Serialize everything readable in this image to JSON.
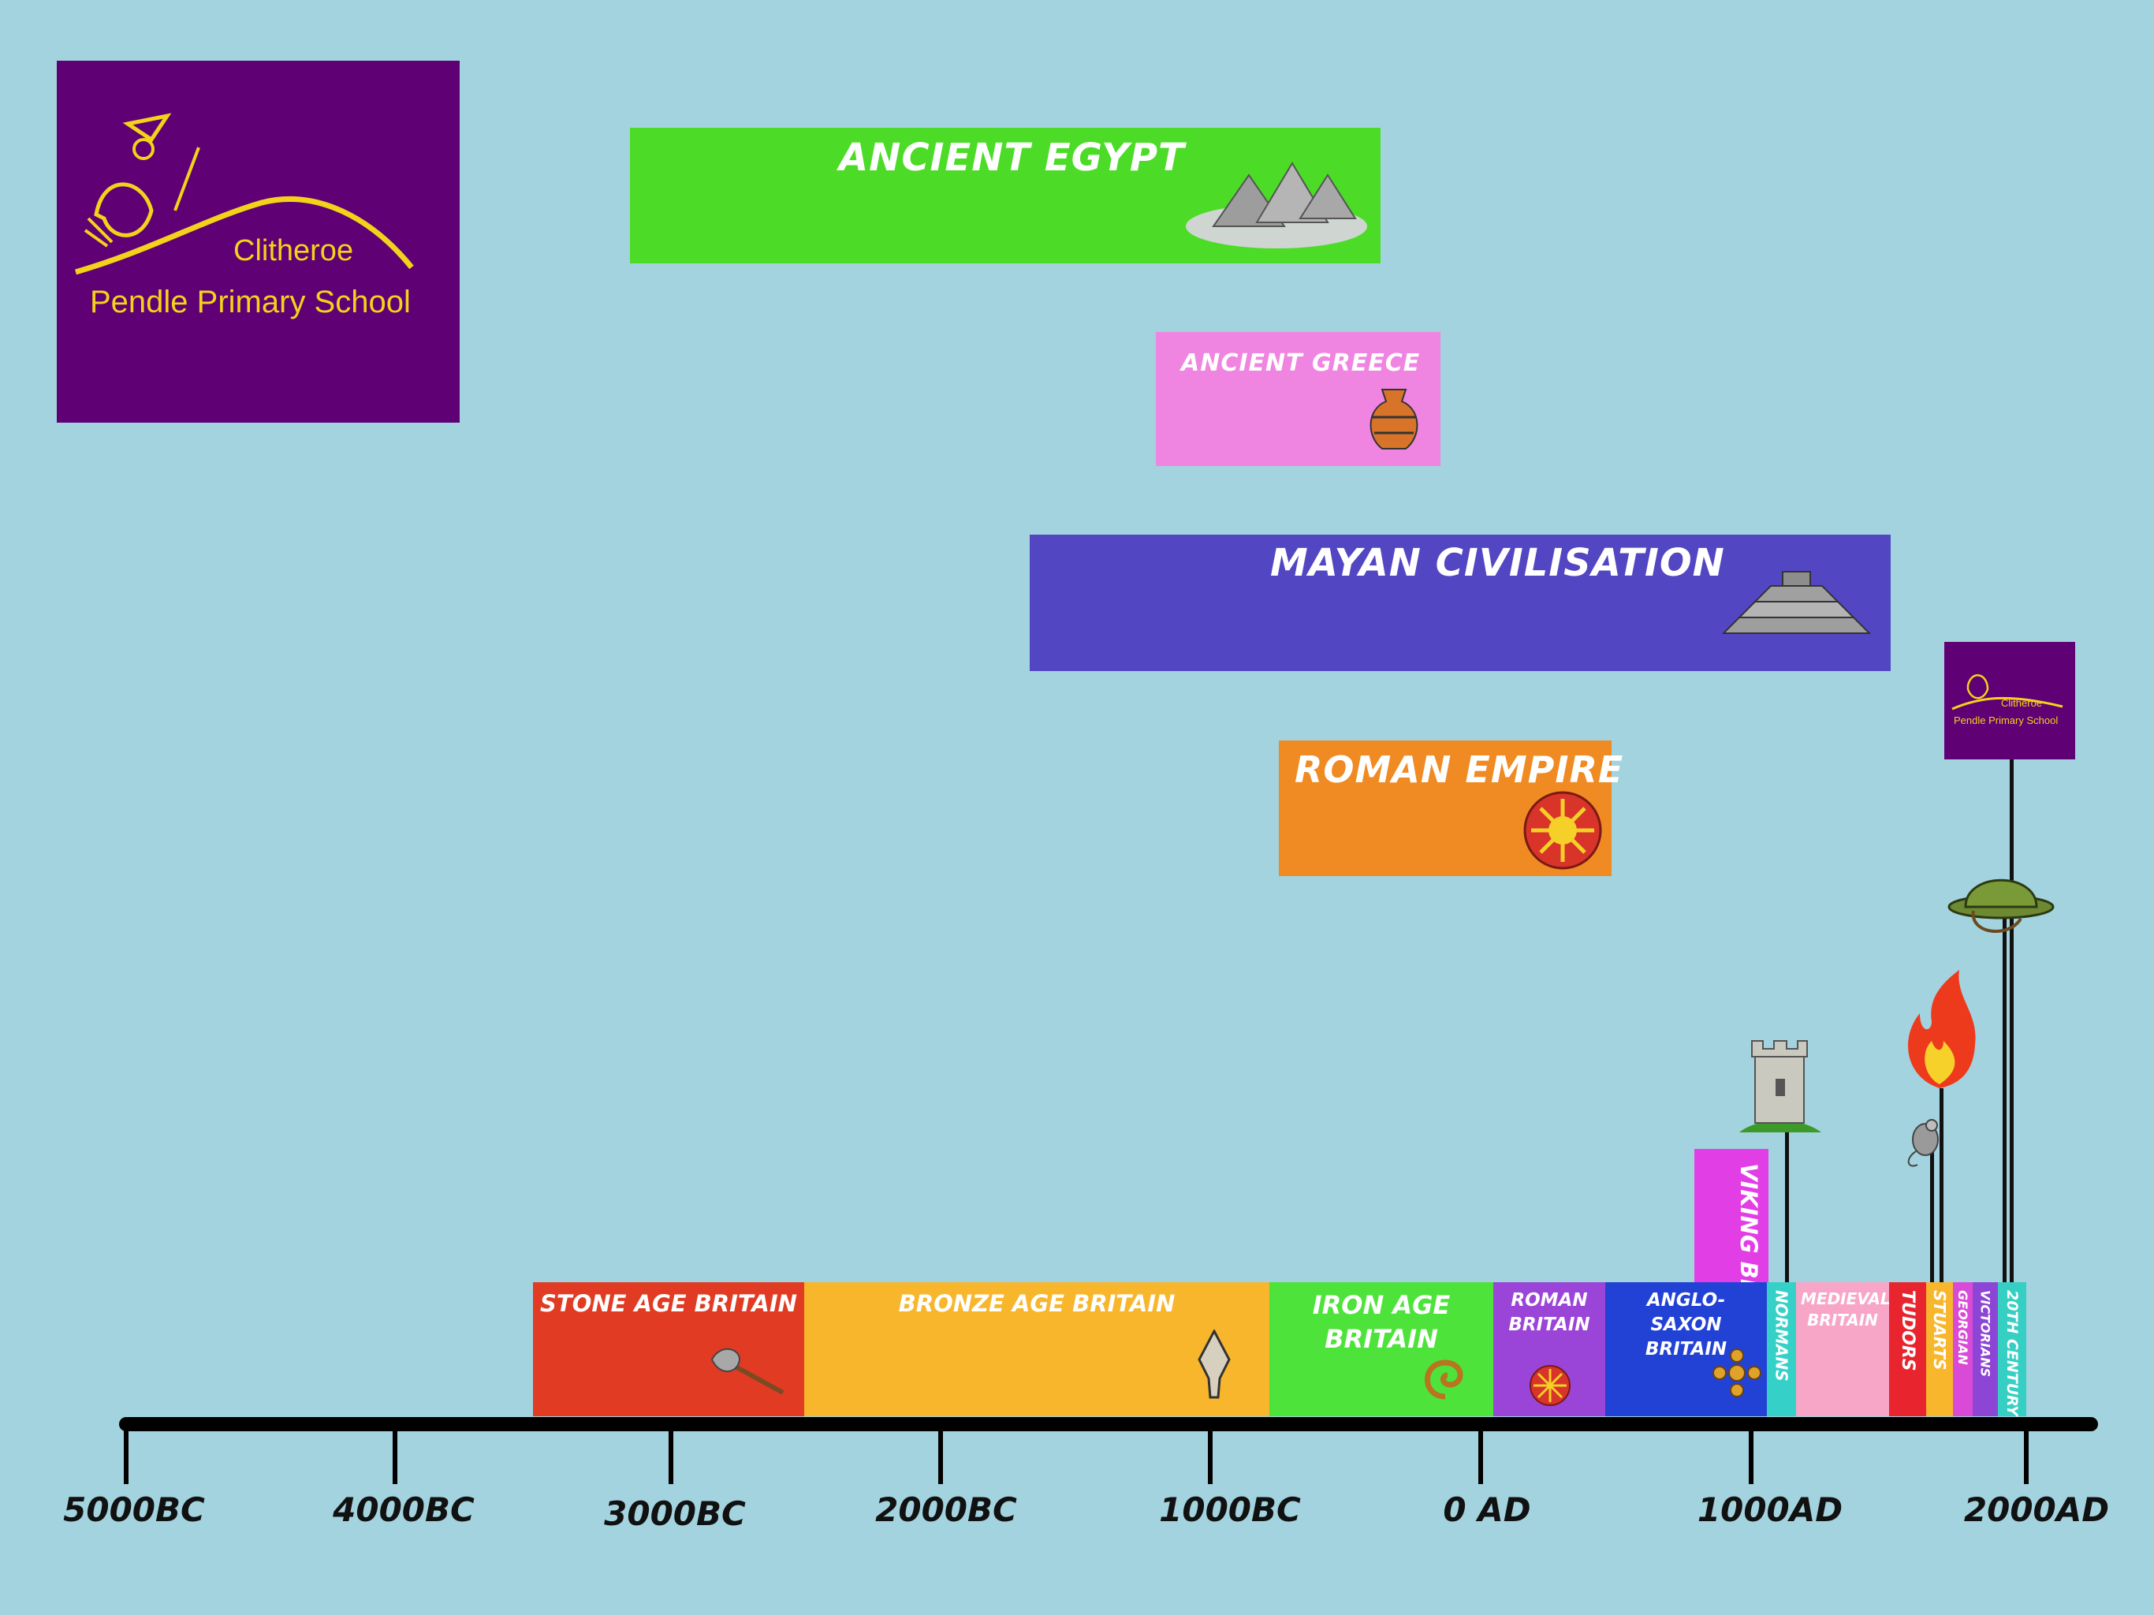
{
  "logo": {
    "line1": "Clitheroe",
    "line2": "Pendle Primary School"
  },
  "civilisations": [
    {
      "label": "ANCIENT EGYPT",
      "color": "#4cdc27",
      "icon": "pyramids-icon"
    },
    {
      "label": "ANCIENT GREECE",
      "color": "#ef85e0",
      "icon": "greek-vase-icon"
    },
    {
      "label": "MAYAN CIVILISATION",
      "color": "#5346c3",
      "icon": "mayan-temple-icon"
    },
    {
      "label": "ROMAN EMPIRE",
      "color": "#f08a22",
      "icon": "roman-shield-icon"
    }
  ],
  "periods": [
    {
      "label": "STONE AGE BRITAIN",
      "color": "#e23b23",
      "icon": "stone-axe-icon"
    },
    {
      "label": "BRONZE AGE BRITAIN",
      "color": "#f8b62d",
      "icon": "bronze-arrowhead-icon"
    },
    {
      "label": "IRON AGE BRITAIN",
      "color": "#4de33a",
      "icon": "iron-torc-icon"
    },
    {
      "label": "ROMAN BRITAIN",
      "color": "#9b45d8",
      "icon": "roman-shield-icon"
    },
    {
      "label": "ANGLO-SAXON BRITAIN",
      "color": "#2242d6",
      "icon": "saxon-brooch-icon"
    },
    {
      "label": "VIKING BRITAIN",
      "color": "#e23ee6"
    },
    {
      "label": "NORMANS",
      "color": "#35d0c8",
      "icon": "castle-tower-icon"
    },
    {
      "label": "MEDIEVAL BRITAIN",
      "color": "#f8a6c8"
    },
    {
      "label": "TUDORS",
      "color": "#e8242e"
    },
    {
      "label": "STUARTS",
      "color": "#f8b62d",
      "icon": "great-fire-icon"
    },
    {
      "label": "GEORGIAN",
      "color": "#d94ad6"
    },
    {
      "label": "VICTORIANS",
      "color": "#8c45d4"
    },
    {
      "label": "20TH CENTURY",
      "color": "#36cfc3",
      "icon": "army-helmet-icon"
    }
  ],
  "axis": {
    "ticks": [
      "5000BC",
      "4000BC",
      "3000BC",
      "2000BC",
      "1000BC",
      "0 AD",
      "1000AD",
      "2000AD"
    ]
  },
  "small_logo": {
    "line1": "Clitheroe",
    "line2": "Pendle Primary School"
  }
}
